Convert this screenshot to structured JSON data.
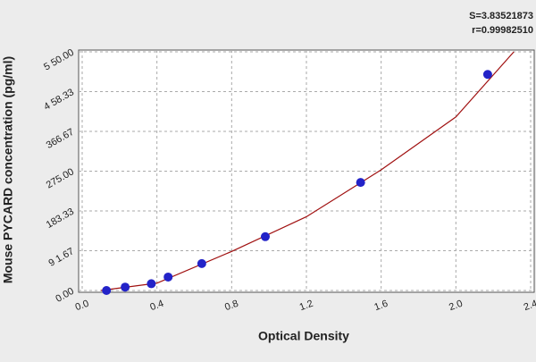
{
  "chart_data": {
    "type": "scatter",
    "annotations": [
      "S=3.83521873",
      "r=0.99982510"
    ],
    "xlabel": "Optical Density",
    "ylabel": "Mouse PYCARD concentration (pg/ml)",
    "xlim": [
      0,
      2.4
    ],
    "xticks": [
      {
        "value": 0,
        "label": "0.0"
      },
      0.4,
      0.8,
      1.2,
      1.6,
      {
        "value": 2,
        "label": "2.0"
      },
      2.4
    ],
    "ylim": [
      0,
      550
    ],
    "yticks": [
      {
        "value": 0,
        "label": "0.00"
      },
      {
        "value": 91.67,
        "label": "9 1.67"
      },
      {
        "value": 183.33,
        "label": "183.33"
      },
      {
        "value": 275,
        "label": "275.00"
      },
      {
        "value": 366.67,
        "label": "366.67"
      },
      {
        "value": 458.33,
        "label": "4 58.33"
      },
      {
        "value": 550,
        "label": "5 50.00"
      }
    ],
    "grid": true,
    "series": [
      {
        "kind": "points",
        "color": "#2323c8",
        "x": [
          0.13,
          0.23,
          0.37,
          0.46,
          0.64,
          0.98,
          1.49,
          2.17
        ],
        "values": [
          0,
          7.8,
          15.6,
          31,
          62,
          124,
          249,
          498
        ]
      },
      {
        "kind": "curve",
        "color": "#a01010",
        "x": [
          0.1,
          0.4,
          0.8,
          1.2,
          1.6,
          2.0,
          2.31
        ],
        "values": [
          0,
          17,
          90,
          170,
          278,
          400,
          550
        ]
      }
    ]
  }
}
